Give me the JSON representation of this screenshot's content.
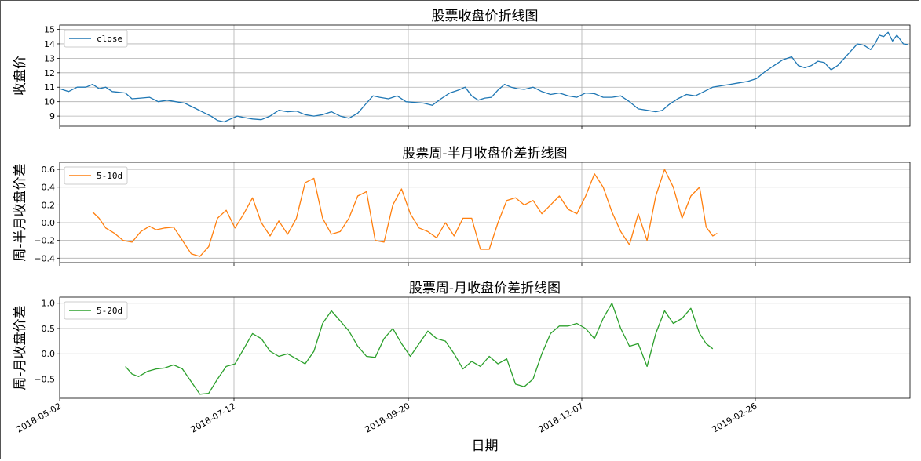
{
  "chart_data": [
    {
      "type": "line",
      "title": "股票收盘价折线图",
      "ylabel": "收盘价",
      "xlabel": "",
      "series": [
        {
          "name": "close",
          "color": "#1f77b4"
        }
      ],
      "legend": "top-left",
      "ylim": [
        8.3,
        15.3
      ],
      "yticks": [
        9,
        10,
        11,
        12,
        13,
        14,
        15
      ],
      "points": [
        [
          0,
          10.9
        ],
        [
          4,
          10.7
        ],
        [
          8,
          11.0
        ],
        [
          12,
          11.0
        ],
        [
          15,
          11.2
        ],
        [
          18,
          10.9
        ],
        [
          21,
          11.0
        ],
        [
          24,
          10.7
        ],
        [
          27,
          10.65
        ],
        [
          30,
          10.6
        ],
        [
          33,
          10.2
        ],
        [
          37,
          10.25
        ],
        [
          41,
          10.3
        ],
        [
          45,
          10.0
        ],
        [
          49,
          10.1
        ],
        [
          53,
          10.0
        ],
        [
          57,
          9.9
        ],
        [
          61,
          9.6
        ],
        [
          65,
          9.3
        ],
        [
          69,
          9.0
        ],
        [
          72,
          8.7
        ],
        [
          75,
          8.6
        ],
        [
          78,
          8.8
        ],
        [
          81,
          9.0
        ],
        [
          84,
          8.9
        ],
        [
          88,
          8.8
        ],
        [
          92,
          8.75
        ],
        [
          96,
          9.0
        ],
        [
          100,
          9.4
        ],
        [
          104,
          9.3
        ],
        [
          108,
          9.35
        ],
        [
          112,
          9.1
        ],
        [
          116,
          9.0
        ],
        [
          120,
          9.1
        ],
        [
          124,
          9.3
        ],
        [
          128,
          9.0
        ],
        [
          132,
          8.85
        ],
        [
          136,
          9.2
        ],
        [
          140,
          9.9
        ],
        [
          143,
          10.4
        ],
        [
          146,
          10.3
        ],
        [
          150,
          10.2
        ],
        [
          154,
          10.4
        ],
        [
          158,
          10.0
        ],
        [
          162,
          9.95
        ],
        [
          166,
          9.9
        ],
        [
          170,
          9.75
        ],
        [
          174,
          10.2
        ],
        [
          178,
          10.6
        ],
        [
          182,
          10.8
        ],
        [
          185,
          11.0
        ],
        [
          188,
          10.4
        ],
        [
          191,
          10.1
        ],
        [
          194,
          10.25
        ],
        [
          197,
          10.3
        ],
        [
          200,
          10.8
        ],
        [
          203,
          11.2
        ],
        [
          206,
          11.0
        ],
        [
          209,
          10.9
        ],
        [
          212,
          10.85
        ],
        [
          216,
          11.0
        ],
        [
          220,
          10.7
        ],
        [
          224,
          10.5
        ],
        [
          228,
          10.6
        ],
        [
          232,
          10.4
        ],
        [
          236,
          10.3
        ],
        [
          240,
          10.6
        ],
        [
          244,
          10.55
        ],
        [
          248,
          10.3
        ],
        [
          252,
          10.3
        ],
        [
          256,
          10.4
        ],
        [
          260,
          10.0
        ],
        [
          264,
          9.5
        ],
        [
          268,
          9.4
        ],
        [
          272,
          9.3
        ],
        [
          275,
          9.4
        ],
        [
          278,
          9.8
        ],
        [
          282,
          10.2
        ],
        [
          286,
          10.5
        ],
        [
          290,
          10.4
        ],
        [
          294,
          10.7
        ],
        [
          298,
          11.0
        ],
        [
          302,
          11.1
        ],
        [
          306,
          11.2
        ],
        [
          310,
          11.3
        ],
        [
          314,
          11.4
        ],
        [
          318,
          11.6
        ],
        [
          322,
          12.1
        ],
        [
          326,
          12.5
        ],
        [
          330,
          12.9
        ],
        [
          334,
          13.1
        ],
        [
          337,
          12.5
        ],
        [
          340,
          12.35
        ],
        [
          343,
          12.5
        ],
        [
          346,
          12.8
        ],
        [
          349,
          12.7
        ],
        [
          352,
          12.2
        ],
        [
          355,
          12.5
        ],
        [
          358,
          13.0
        ],
        [
          361,
          13.5
        ],
        [
          364,
          14.0
        ],
        [
          367,
          13.9
        ],
        [
          370,
          13.6
        ],
        [
          372,
          14.0
        ],
        [
          374,
          14.6
        ],
        [
          376,
          14.5
        ],
        [
          378,
          14.8
        ],
        [
          380,
          14.2
        ],
        [
          382,
          14.6
        ],
        [
          385,
          14.0
        ],
        [
          387,
          13.95
        ]
      ]
    },
    {
      "type": "line",
      "title": "股票周-半月收盘价差折线图",
      "ylabel": "周-半月收盘价差",
      "xlabel": "",
      "series": [
        {
          "name": "5-10d",
          "color": "#ff7f0e"
        }
      ],
      "legend": "top-left",
      "ylim": [
        -0.45,
        0.68
      ],
      "yticks": [
        -0.4,
        -0.2,
        0.0,
        0.2,
        0.4,
        0.6
      ],
      "yticklabels": [
        "−0.4",
        "−0.2",
        "0.0",
        "0.2",
        "0.4",
        "0.6"
      ],
      "points": [
        [
          15,
          0.12
        ],
        [
          18,
          0.05
        ],
        [
          21,
          -0.06
        ],
        [
          25,
          -0.12
        ],
        [
          29,
          -0.2
        ],
        [
          33,
          -0.22
        ],
        [
          37,
          -0.1
        ],
        [
          41,
          -0.04
        ],
        [
          44,
          -0.08
        ],
        [
          48,
          -0.06
        ],
        [
          52,
          -0.05
        ],
        [
          56,
          -0.2
        ],
        [
          60,
          -0.35
        ],
        [
          64,
          -0.38
        ],
        [
          68,
          -0.27
        ],
        [
          72,
          0.05
        ],
        [
          76,
          0.14
        ],
        [
          80,
          -0.06
        ],
        [
          84,
          0.1
        ],
        [
          88,
          0.28
        ],
        [
          92,
          0.0
        ],
        [
          96,
          -0.15
        ],
        [
          100,
          0.02
        ],
        [
          104,
          -0.13
        ],
        [
          108,
          0.05
        ],
        [
          112,
          0.45
        ],
        [
          116,
          0.5
        ],
        [
          120,
          0.05
        ],
        [
          124,
          -0.13
        ],
        [
          128,
          -0.1
        ],
        [
          132,
          0.05
        ],
        [
          136,
          0.3
        ],
        [
          140,
          0.35
        ],
        [
          144,
          -0.2
        ],
        [
          148,
          -0.22
        ],
        [
          152,
          0.2
        ],
        [
          156,
          0.38
        ],
        [
          160,
          0.1
        ],
        [
          164,
          -0.06
        ],
        [
          168,
          -0.1
        ],
        [
          172,
          -0.17
        ],
        [
          176,
          0.0
        ],
        [
          180,
          -0.15
        ],
        [
          184,
          0.05
        ],
        [
          188,
          0.05
        ],
        [
          192,
          -0.3
        ],
        [
          196,
          -0.3
        ],
        [
          200,
          0.0
        ],
        [
          204,
          0.25
        ],
        [
          208,
          0.28
        ],
        [
          212,
          0.2
        ],
        [
          216,
          0.25
        ],
        [
          220,
          0.1
        ],
        [
          224,
          0.2
        ],
        [
          228,
          0.3
        ],
        [
          232,
          0.15
        ],
        [
          236,
          0.1
        ],
        [
          240,
          0.3
        ],
        [
          244,
          0.55
        ],
        [
          248,
          0.4
        ],
        [
          252,
          0.12
        ],
        [
          256,
          -0.1
        ],
        [
          260,
          -0.25
        ],
        [
          264,
          0.1
        ],
        [
          268,
          -0.2
        ],
        [
          272,
          0.3
        ],
        [
          276,
          0.6
        ],
        [
          280,
          0.4
        ],
        [
          284,
          0.05
        ],
        [
          288,
          0.3
        ],
        [
          292,
          0.4
        ],
        [
          295,
          -0.05
        ],
        [
          298,
          -0.15
        ],
        [
          300,
          -0.12
        ]
      ]
    },
    {
      "type": "line",
      "title": "股票周-月收盘价差折线图",
      "ylabel": "周-月收盘价差",
      "xlabel": "日期",
      "series": [
        {
          "name": "5-20d",
          "color": "#2ca02c"
        }
      ],
      "legend": "top-left",
      "ylim": [
        -0.88,
        1.12
      ],
      "yticks": [
        -0.5,
        0.0,
        0.5,
        1.0
      ],
      "yticklabels": [
        "−0.5",
        "0.0",
        "0.5",
        "1.0"
      ],
      "points": [
        [
          30,
          -0.25
        ],
        [
          33,
          -0.4
        ],
        [
          36,
          -0.45
        ],
        [
          40,
          -0.35
        ],
        [
          44,
          -0.3
        ],
        [
          48,
          -0.28
        ],
        [
          52,
          -0.22
        ],
        [
          56,
          -0.3
        ],
        [
          60,
          -0.55
        ],
        [
          64,
          -0.8
        ],
        [
          68,
          -0.78
        ],
        [
          72,
          -0.5
        ],
        [
          76,
          -0.25
        ],
        [
          80,
          -0.2
        ],
        [
          84,
          0.1
        ],
        [
          88,
          0.4
        ],
        [
          92,
          0.3
        ],
        [
          96,
          0.05
        ],
        [
          100,
          -0.05
        ],
        [
          104,
          0.0
        ],
        [
          108,
          -0.1
        ],
        [
          112,
          -0.2
        ],
        [
          116,
          0.05
        ],
        [
          120,
          0.6
        ],
        [
          124,
          0.85
        ],
        [
          128,
          0.65
        ],
        [
          132,
          0.45
        ],
        [
          136,
          0.15
        ],
        [
          140,
          -0.05
        ],
        [
          144,
          -0.07
        ],
        [
          148,
          0.3
        ],
        [
          152,
          0.5
        ],
        [
          156,
          0.2
        ],
        [
          160,
          -0.05
        ],
        [
          164,
          0.2
        ],
        [
          168,
          0.45
        ],
        [
          172,
          0.3
        ],
        [
          176,
          0.25
        ],
        [
          180,
          0.0
        ],
        [
          184,
          -0.3
        ],
        [
          188,
          -0.15
        ],
        [
          192,
          -0.25
        ],
        [
          196,
          -0.05
        ],
        [
          200,
          -0.2
        ],
        [
          204,
          -0.1
        ],
        [
          208,
          -0.6
        ],
        [
          212,
          -0.65
        ],
        [
          216,
          -0.5
        ],
        [
          220,
          0.0
        ],
        [
          224,
          0.4
        ],
        [
          228,
          0.55
        ],
        [
          232,
          0.55
        ],
        [
          236,
          0.6
        ],
        [
          240,
          0.5
        ],
        [
          244,
          0.3
        ],
        [
          248,
          0.7
        ],
        [
          252,
          1.0
        ],
        [
          256,
          0.5
        ],
        [
          260,
          0.15
        ],
        [
          264,
          0.2
        ],
        [
          268,
          -0.25
        ],
        [
          272,
          0.4
        ],
        [
          276,
          0.85
        ],
        [
          280,
          0.6
        ],
        [
          284,
          0.7
        ],
        [
          288,
          0.9
        ],
        [
          292,
          0.4
        ],
        [
          295,
          0.2
        ],
        [
          298,
          0.1
        ]
      ]
    }
  ],
  "x_axis": {
    "xlabel": "日期",
    "tick_labels": [
      "2018-05-02",
      "2018-07-12",
      "2018-09-20",
      "2018-12-07",
      "2019-02-26"
    ]
  }
}
